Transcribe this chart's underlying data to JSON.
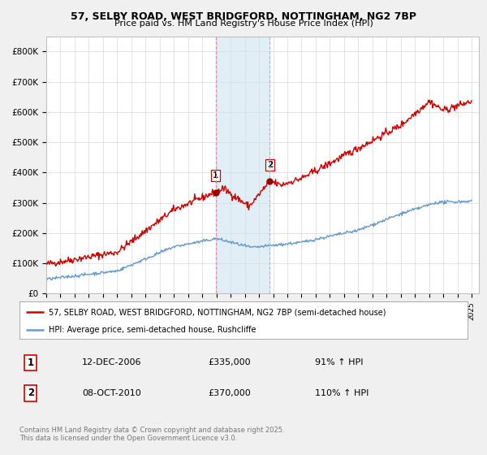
{
  "title1": "57, SELBY ROAD, WEST BRIDGFORD, NOTTINGHAM, NG2 7BP",
  "title2": "Price paid vs. HM Land Registry's House Price Index (HPI)",
  "legend_line1": "57, SELBY ROAD, WEST BRIDGFORD, NOTTINGHAM, NG2 7BP (semi-detached house)",
  "legend_line2": "HPI: Average price, semi-detached house, Rushcliffe",
  "annotation1_label": "1",
  "annotation1_date": "12-DEC-2006",
  "annotation1_price": "£335,000",
  "annotation1_hpi": "91% ↑ HPI",
  "annotation2_label": "2",
  "annotation2_date": "08-OCT-2010",
  "annotation2_price": "£370,000",
  "annotation2_hpi": "110% ↑ HPI",
  "footnote": "Contains HM Land Registry data © Crown copyright and database right 2025.\nThis data is licensed under the Open Government Licence v3.0.",
  "red_color": "#cc0000",
  "blue_color": "#6699cc",
  "background_color": "#f0f0f0",
  "plot_bg_color": "#ffffff",
  "ylim": [
    0,
    850000
  ],
  "yticks": [
    0,
    100000,
    200000,
    300000,
    400000,
    500000,
    600000,
    700000,
    800000
  ],
  "ytick_labels": [
    "£0",
    "£100K",
    "£200K",
    "£300K",
    "£400K",
    "£500K",
    "£600K",
    "£700K",
    "£800K"
  ],
  "sale1_year": 2006.95,
  "sale1_price": 335000,
  "sale2_year": 2010.77,
  "sale2_price": 370000
}
